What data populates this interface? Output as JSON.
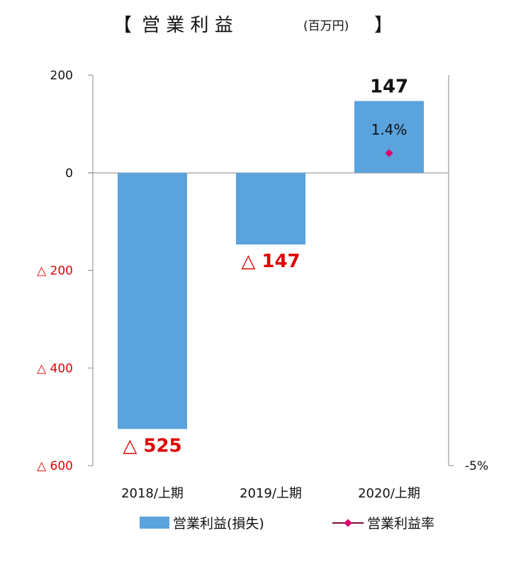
{
  "title": {
    "open_bracket": "【",
    "main": "営 業 利 益",
    "unit": "(百万円)",
    "close_bracket": "】"
  },
  "chart_data": {
    "type": "bar",
    "title": "営業利益",
    "categories": [
      "2018/上期",
      "2019/上期",
      "2020/上期"
    ],
    "series": [
      {
        "name": "営業利益(損失)",
        "values": [
          -525,
          -147,
          147
        ],
        "color": "#5ba3dc"
      },
      {
        "name": "営業利益率",
        "values": [
          null,
          null,
          1.4
        ],
        "unit": "%",
        "color": "#e0006a"
      }
    ],
    "data_labels": [
      "△ 525",
      "△ 147",
      "147"
    ],
    "data_label_colors": [
      "#e00000",
      "#e00000",
      "#111111"
    ],
    "rate_label": "1.4%",
    "ylim": [
      -600,
      200
    ],
    "y_ticks": [
      {
        "value": 200,
        "label": "200",
        "color": "#111111"
      },
      {
        "value": 0,
        "label": "0",
        "color": "#111111"
      },
      {
        "value": -200,
        "label": "△ 200",
        "color": "#e00000"
      },
      {
        "value": -400,
        "label": "△ 400",
        "color": "#e00000"
      },
      {
        "value": -600,
        "label": "△ 600",
        "color": "#e00000"
      }
    ],
    "y2_ticks": [
      {
        "value": -5,
        "label": "-5%"
      }
    ],
    "legend_placement": "bottom",
    "grid": false
  },
  "legend": [
    {
      "label": "営業利益(損失)"
    },
    {
      "label": "営業利益率"
    }
  ]
}
